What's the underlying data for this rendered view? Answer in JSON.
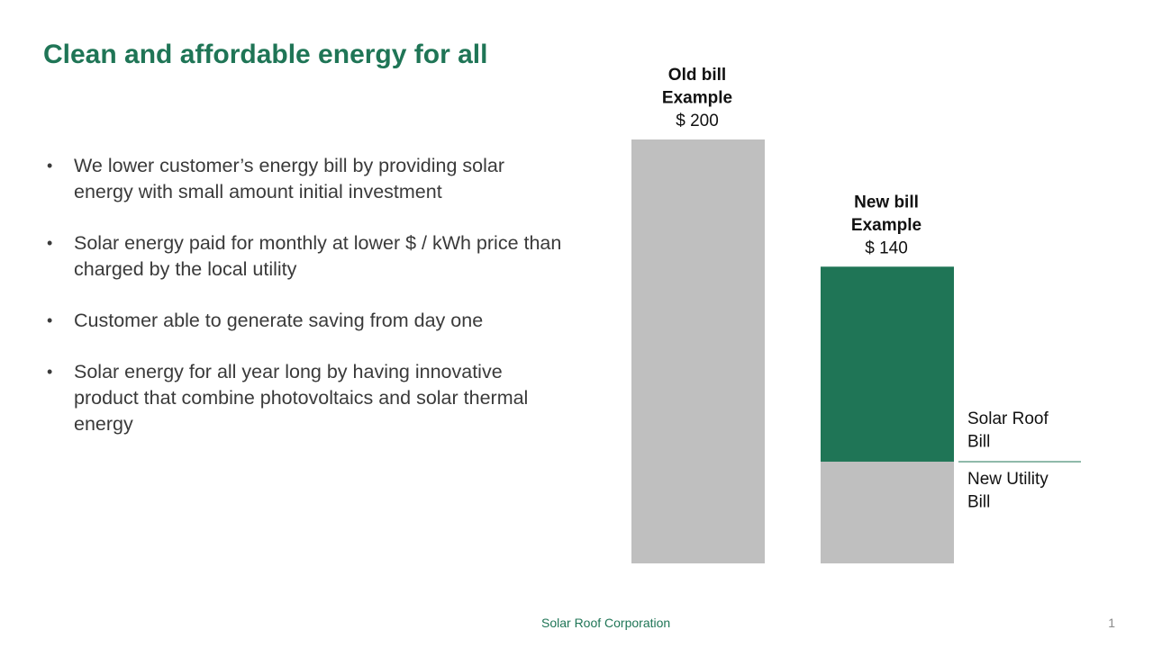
{
  "slide": {
    "title": "Clean and affordable energy for all",
    "bullets": [
      "We lower customer’s energy bill by providing solar energy with small amount initial investment",
      "Solar energy paid for monthly at lower $ / kWh price than charged by the local utility",
      "Customer able to generate saving from day one",
      "Solar energy for all year long by having innovative product that combine photovoltaics and solar thermal energy"
    ],
    "footer": "Solar Roof Corporation",
    "page_number": "1"
  },
  "colors": {
    "accent": "#1f7556",
    "utility": "#bfbfbf"
  },
  "chart_data": {
    "type": "bar",
    "stacked": true,
    "ylim": [
      0,
      200
    ],
    "categories": [
      {
        "header": [
          "Old bill",
          "Example"
        ],
        "total_label": "$ 200",
        "total": 200
      },
      {
        "header": [
          "New bill",
          "Example"
        ],
        "total_label": "$ 140",
        "total": 140
      }
    ],
    "series": [
      {
        "name": "New Utility Bill",
        "label_lines": [
          "New Utility",
          "Bill"
        ],
        "color": "#bfbfbf",
        "values": [
          200,
          48
        ]
      },
      {
        "name": "Solar Roof Bill",
        "label_lines": [
          "Solar Roof",
          "Bill"
        ],
        "color": "#1f7556",
        "values": [
          0,
          92
        ]
      }
    ]
  }
}
